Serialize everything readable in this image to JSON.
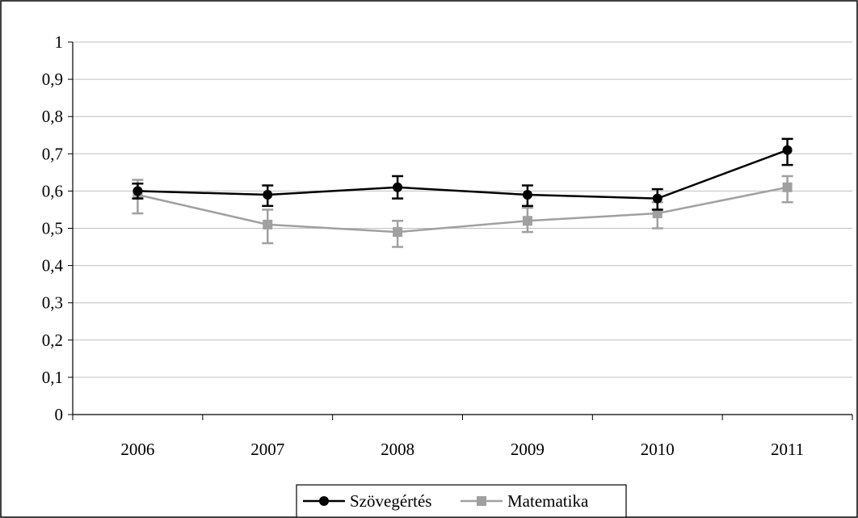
{
  "chart_data": {
    "type": "line",
    "title": "",
    "xlabel": "",
    "ylabel": "",
    "categories": [
      "2006",
      "2007",
      "2008",
      "2009",
      "2010",
      "2011"
    ],
    "ylim": [
      0,
      1
    ],
    "yticks": [
      0,
      0.1,
      0.2,
      0.3,
      0.4,
      0.5,
      0.6,
      0.7,
      0.8,
      0.9,
      1
    ],
    "ytick_labels": [
      "0",
      "0,1",
      "0,2",
      "0,3",
      "0,4",
      "0,5",
      "0,6",
      "0,7",
      "0,8",
      "0,9",
      "1"
    ],
    "grid": true,
    "legend_position": "bottom",
    "series": [
      {
        "name": "Szövegértés",
        "color": "#000000",
        "marker": "circle",
        "values": [
          0.6,
          0.59,
          0.61,
          0.59,
          0.58,
          0.71
        ],
        "error_low": [
          0.58,
          0.56,
          0.58,
          0.56,
          0.55,
          0.67
        ],
        "error_high": [
          0.62,
          0.615,
          0.64,
          0.615,
          0.605,
          0.74
        ]
      },
      {
        "name": "Matematika",
        "color": "#a0a0a0",
        "marker": "square",
        "values": [
          0.59,
          0.51,
          0.49,
          0.52,
          0.54,
          0.61
        ],
        "error_low": [
          0.54,
          0.46,
          0.45,
          0.49,
          0.5,
          0.57
        ],
        "error_high": [
          0.63,
          0.55,
          0.52,
          0.555,
          0.57,
          0.64
        ]
      }
    ]
  }
}
